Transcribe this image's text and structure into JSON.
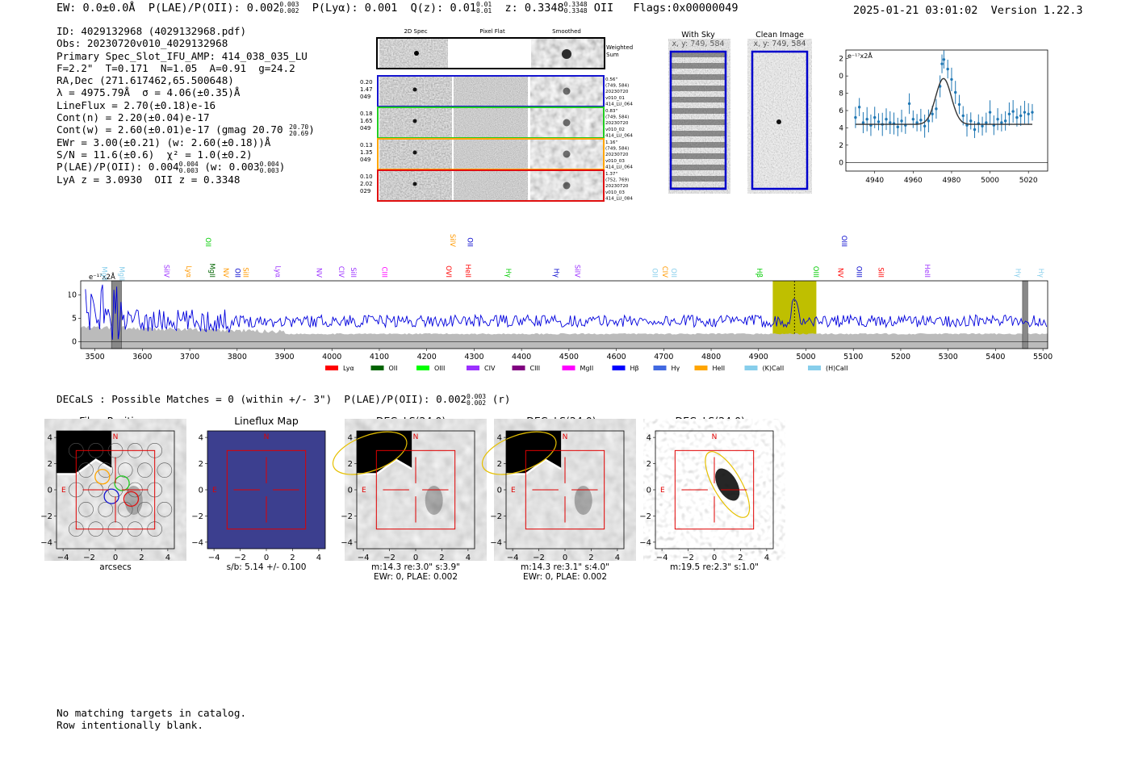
{
  "header": {
    "ew": "EW: 0.0±0.0Å",
    "plae": "P(LAE)/P(OII): 0.002",
    "plae_hi": "0.003",
    "plae_lo": "0.002",
    "plya": "P(Lyα): 0.001",
    "q": "Q(z): 0.01",
    "q_hi": "0.01",
    "q_lo": "0.01",
    "z": "z: 0.3348",
    "z_hi": "0.3348",
    "z_lo": "0.3348",
    "z_line": "OII",
    "flags": "Flags:0x00000049",
    "timestamp": "2025-01-21 03:01:02  Version 1.22.3"
  },
  "info": {
    "id": "ID: 4029132968 (4029132968.pdf)",
    "obs": "Obs: 20230720v010_4029132968",
    "primary": "Primary Spec_Slot_IFU_AMP: 414_038_035_LU",
    "fparams": "F=2.2\"  T=0.171  N=1.05  A=0.91  g=24.2",
    "radec": "RA,Dec (271.617462,65.500648)",
    "lambda": "λ = 4975.79Å  σ = 4.06(±0.35)Å",
    "lineflux": "LineFlux = 2.70(±0.18)e-16",
    "contn": "Cont(n) = 2.20(±0.04)e-17",
    "contw": "Cont(w) = 2.60(±0.01)e-17 (gmag 20.70",
    "contw_hi": "20.70",
    "contw_lo": "20.69",
    "contw_end": ")",
    "ewr": "EWr = 3.00(±0.21) (w: 2.60(±0.18))Å",
    "sn": "S/N = 11.6(±0.6)  χ² = 1.0(±0.2)",
    "plae": "P(LAE)/P(OII): 0.004",
    "plae_hi": "0.004",
    "plae_lo": "0.003",
    "plae_w": "(w: 0.003",
    "plae_w_hi": "0.004",
    "plae_w_lo": "0.003",
    "plae_end": ")",
    "lya_z": "LyA z = 3.0930  OII z = 0.3348"
  },
  "cutouts": {
    "col_2d": "2D Spec",
    "col_flat": "Pixel Flat",
    "col_smooth": "Smoothed",
    "weighted": "Weighted",
    "sum": "Sum",
    "rows": [
      {
        "a": "0.20",
        "b": "1.47",
        "c": "049",
        "d1": "0.56\"",
        "d2": "(749, 584)",
        "d3": "20230720",
        "d4": "v010_01",
        "d5": "414_LU_064",
        "color": "#1515d0"
      },
      {
        "a": "0.18",
        "b": "1.65",
        "c": "049",
        "d1": "0.83\"",
        "d2": "(749, 584)",
        "d3": "20230720",
        "d4": "v010_02",
        "d5": "414_LU_064",
        "color": "#22cc22"
      },
      {
        "a": "0.13",
        "b": "1.35",
        "c": "049",
        "d1": "1.16\"",
        "d2": "(749, 584)",
        "d3": "20230720",
        "d4": "v010_03",
        "d5": "414_LU_064",
        "color": "#ffa500"
      },
      {
        "a": "0.10",
        "b": "2.02",
        "c": "029",
        "d1": "1.37\"",
        "d2": "(752, 769)",
        "d3": "20230720",
        "d4": "v010_03",
        "d5": "414_LU_084",
        "color": "#e01010"
      }
    ],
    "with_sky": "With Sky",
    "with_sky_xy": "x, y: 749, 584",
    "clean": "Clean Image",
    "clean_xy": "x, y: 749, 584"
  },
  "chart_data": [
    {
      "type": "scatter",
      "title": "",
      "ylabel": "e⁻¹⁷x2Å",
      "xlim": [
        4925,
        5030
      ],
      "ylim": [
        -1,
        13
      ],
      "xticks": [
        "4940",
        "4960",
        "4980",
        "5000",
        "5020"
      ],
      "xtick_values": [
        4940,
        4960,
        4980,
        5000,
        5020
      ],
      "yticks": [
        "0",
        "2",
        "4",
        "6",
        "8",
        "10",
        "12"
      ],
      "ytick_values": [
        0,
        2,
        4,
        6,
        8,
        10,
        12
      ],
      "points_x": [
        4930,
        4932,
        4934,
        4936,
        4938,
        4940,
        4942,
        4944,
        4946,
        4948,
        4950,
        4952,
        4954,
        4956,
        4958,
        4960,
        4962,
        4964,
        4966,
        4968,
        4970,
        4972,
        4974,
        4975,
        4976,
        4978,
        4980,
        4982,
        4984,
        4986,
        4988,
        4990,
        4992,
        4994,
        4996,
        4998,
        5000,
        5002,
        5004,
        5006,
        5008,
        5010,
        5012,
        5014,
        5016,
        5018,
        5020,
        5022
      ],
      "points_y": [
        5.2,
        6.4,
        4.6,
        5.0,
        4.3,
        5.2,
        4.7,
        4.4,
        5.0,
        4.6,
        4.5,
        4.1,
        4.8,
        4.3,
        6.8,
        5.0,
        4.6,
        4.9,
        4.2,
        4.8,
        5.6,
        6.2,
        8.8,
        11.4,
        11.9,
        10.8,
        9.6,
        8.1,
        6.7,
        5.4,
        4.3,
        4.8,
        3.8,
        4.5,
        4.2,
        4.6,
        5.8,
        4.3,
        5.0,
        4.6,
        4.8,
        5.6,
        5.9,
        5.2,
        5.4,
        5.8,
        5.6,
        5.8
      ],
      "fit_continuum": 4.4,
      "fit_center": 4975.8,
      "fit_sigma": 4.06,
      "fit_amp": 5.3
    },
    {
      "type": "line",
      "title": "",
      "ylabel": "e⁻¹⁷x2Å",
      "xlim": [
        3470,
        5510
      ],
      "ylim": [
        -1.5,
        13
      ],
      "xticks": [
        "3500",
        "3600",
        "3700",
        "3800",
        "3900",
        "4000",
        "4100",
        "4200",
        "4300",
        "4400",
        "4500",
        "4600",
        "4700",
        "4800",
        "4900",
        "5000",
        "5100",
        "5200",
        "5300",
        "5400",
        "5500"
      ],
      "xtick_values": [
        3500,
        3600,
        3700,
        3800,
        3900,
        4000,
        4100,
        4200,
        4300,
        4400,
        4500,
        4600,
        4700,
        4800,
        4900,
        5000,
        5100,
        5200,
        5300,
        5400,
        5500
      ],
      "yticks": [
        "0",
        "5",
        "10"
      ],
      "ytick_values": [
        0,
        5,
        10
      ],
      "continuum": 4.4,
      "emission_center": 4975.8,
      "emission_peak": 11.5,
      "highlight_band": [
        4930,
        5022
      ],
      "grey_bands": [
        [
          3535,
          3556
        ],
        [
          5457,
          5468
        ]
      ],
      "line_labels": [
        {
          "name": "MgII",
          "wave": 3510,
          "color": "#87ceeb",
          "row": 1
        },
        {
          "name": "MgII",
          "wave": 3547,
          "color": "#87ceeb",
          "row": 1
        },
        {
          "name": "SiIV",
          "wave": 3641,
          "color": "#9b30ff",
          "row": 2
        },
        {
          "name": "Lyα",
          "wave": 3688,
          "color": "#ff9900",
          "row": 2
        },
        {
          "name": "MgII",
          "wave": 3737,
          "color": "#006400",
          "row": 2
        },
        {
          "name": "OII",
          "wave": 3729,
          "color": "#00cc00",
          "row": 0
        },
        {
          "name": "NV",
          "wave": 3766,
          "color": "#ff9900",
          "row": 2
        },
        {
          "name": "OII",
          "wave": 3791,
          "color": "#0000cc",
          "row": 2
        },
        {
          "name": "SiII",
          "wave": 3808,
          "color": "#ff9900",
          "row": 2
        },
        {
          "name": "Lyα",
          "wave": 3876,
          "color": "#9b30ff",
          "row": 2
        },
        {
          "name": "NV",
          "wave": 3963,
          "color": "#9b30ff",
          "row": 2
        },
        {
          "name": "CIV",
          "wave": 4010,
          "color": "#9b30ff",
          "row": 2
        },
        {
          "name": "SiII",
          "wave": 4035,
          "color": "#9b30ff",
          "row": 2
        },
        {
          "name": "CIII",
          "wave": 4101,
          "color": "#ff00ff",
          "row": 2
        },
        {
          "name": "SiIV",
          "wave": 4245,
          "color": "#ff9900",
          "row": 0
        },
        {
          "name": "OVI",
          "wave": 4236,
          "color": "#ff0000",
          "row": 2
        },
        {
          "name": "OII",
          "wave": 4281,
          "color": "#0000cc",
          "row": 0
        },
        {
          "name": "HeII",
          "wave": 4277,
          "color": "#ff0000",
          "row": 2
        },
        {
          "name": "Hγ",
          "wave": 4362,
          "color": "#00cc00",
          "row": 2
        },
        {
          "name": "Hγ",
          "wave": 4464,
          "color": "#0000cc",
          "row": 2
        },
        {
          "name": "SiIV",
          "wave": 4508,
          "color": "#9b30ff",
          "row": 2
        },
        {
          "name": "OII",
          "wave": 4671,
          "color": "#87ceeb",
          "row": 2
        },
        {
          "name": "CIV",
          "wave": 4693,
          "color": "#ff9900",
          "row": 2
        },
        {
          "name": "OII",
          "wave": 4711,
          "color": "#87ceeb",
          "row": 2
        },
        {
          "name": "Hβ",
          "wave": 4892,
          "color": "#00cc00",
          "row": 2
        },
        {
          "name": "OIII",
          "wave": 5011,
          "color": "#00cc00",
          "row": 2
        },
        {
          "name": "NV",
          "wave": 5063,
          "color": "#ff0000",
          "row": 2
        },
        {
          "name": "OIII",
          "wave": 5071,
          "color": "#0000cc",
          "row": 0
        },
        {
          "name": "OIII",
          "wave": 5102,
          "color": "#0000cc",
          "row": 2
        },
        {
          "name": "SiII",
          "wave": 5148,
          "color": "#ff0000",
          "row": 2
        },
        {
          "name": "HeII",
          "wave": 5246,
          "color": "#9b30ff",
          "row": 2
        },
        {
          "name": "Hγ",
          "wave": 5438,
          "color": "#87ceeb",
          "row": 2
        },
        {
          "name": "Hγ",
          "wave": 5486,
          "color": "#87ceeb",
          "row": 2
        }
      ],
      "legend": [
        {
          "name": "Lyα",
          "color": "#ff0000"
        },
        {
          "name": "OII",
          "color": "#006400"
        },
        {
          "name": "OIII",
          "color": "#00ff00"
        },
        {
          "name": "CIV",
          "color": "#9b30ff"
        },
        {
          "name": "CIII",
          "color": "#800080"
        },
        {
          "name": "MgII",
          "color": "#ff00ff"
        },
        {
          "name": "Hβ",
          "color": "#0000ff"
        },
        {
          "name": "Hγ",
          "color": "#4169e1"
        },
        {
          "name": "HeII",
          "color": "#ffa500"
        },
        {
          "name": "(K)CaII",
          "color": "#87ceeb"
        },
        {
          "name": "(H)CaII",
          "color": "#87ceeb"
        }
      ]
    }
  ],
  "decals": {
    "line": "DECaLS : Possible Matches = 0 (within +/- 3\")  P(LAE)/P(OII): 0.002",
    "line_hi": "0.003",
    "line_lo": "0.002",
    "line_end": "(r)",
    "panels": [
      {
        "title": "Fiber Positions",
        "caption1": "arcsecs",
        "caption2": ""
      },
      {
        "title": "Lineflux Map",
        "caption1": "s/b: 5.14 +/- 0.100",
        "caption2": ""
      },
      {
        "title": "DECaLS(24.0) g",
        "caption1": "m:14.3  re:3.0\"  s:3.9\"",
        "caption2": "EWr: 0, PLAE: 0.002"
      },
      {
        "title": "DECaLS(24.0) r",
        "caption1": "m:14.3  re:3.1\"  s:4.0\"",
        "caption2": "EWr: 0, PLAE: 0.002"
      },
      {
        "title": "DECaLS(24.0) z",
        "caption1": "m:19.5  re:2.3\"  s:1.0\"",
        "caption2": ""
      }
    ],
    "axis_ticks": [
      "−4",
      "−2",
      "0",
      "2",
      "4"
    ],
    "label_n": "N",
    "label_e": "E"
  },
  "footer": {
    "line1": "No matching targets in catalog.",
    "line2": "Row intentionally blank."
  }
}
